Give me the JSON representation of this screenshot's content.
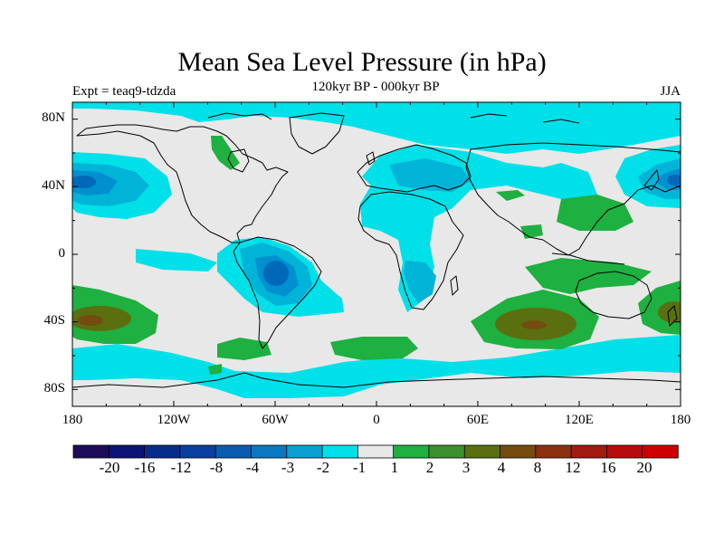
{
  "title": "Mean Sea Level Pressure (in hPa)",
  "subtitle": "120kyr BP - 000kyr BP",
  "left_string": "Expt = teaq9-tdzda",
  "right_string": "JJA",
  "colors": {
    "ocean_neutral": "#e8e8e8",
    "neg_1": "#00e0e8",
    "neg_2": "#00b4d8",
    "neg_3": "#0090d0",
    "neg_4": "#0068b8",
    "pos_1": "#1eb040",
    "pos_2": "#3c9030",
    "pos_3": "#5a7010",
    "pos_4": "#744c10",
    "coast": "#000000"
  },
  "map": {
    "lon_range": [
      -180,
      180
    ],
    "lat_range": [
      -90,
      90
    ],
    "lat_ticks": [
      "80N",
      "40N",
      "0",
      "40S",
      "80S"
    ],
    "lon_ticks": [
      "180",
      "120W",
      "60W",
      "0",
      "60E",
      "120E",
      "180"
    ]
  },
  "colorbar": {
    "levels": [
      "-20",
      "-16",
      "-12",
      "-8",
      "-4",
      "-3",
      "-2",
      "-1",
      "1",
      "2",
      "3",
      "4",
      "8",
      "12",
      "16",
      "20"
    ],
    "colors": [
      "#1c0c5a",
      "#0c1478",
      "#082c8c",
      "#0a3ea0",
      "#0a5cb0",
      "#0a78c0",
      "#0aa0d4",
      "#00e0e8",
      "#e8e8e8",
      "#1eb040",
      "#3c9030",
      "#5a7010",
      "#744c10",
      "#8c3010",
      "#a01a10",
      "#b80c0c",
      "#cc0000"
    ]
  }
}
